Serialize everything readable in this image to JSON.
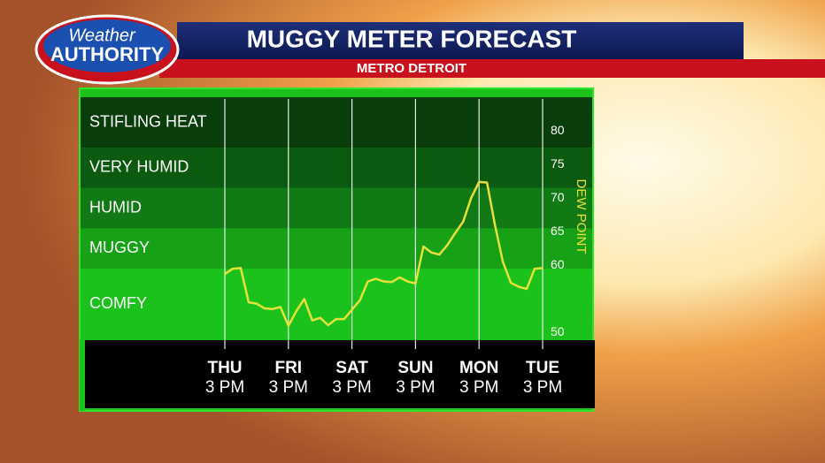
{
  "header": {
    "logo_top": "Weather",
    "logo_bottom": "AUTHORITY",
    "title": "MUGGY METER FORECAST",
    "subtitle": "METRO DETROIT"
  },
  "chart_data": {
    "type": "line",
    "y_label": "DEW POINT",
    "x": [
      0,
      3,
      6,
      9,
      12,
      15,
      18,
      21,
      24,
      27,
      30,
      33,
      36,
      39,
      42,
      45,
      48,
      51,
      54,
      57,
      60,
      63,
      66,
      69,
      72,
      75,
      78,
      81,
      84,
      87,
      90,
      93,
      96,
      99,
      102,
      105,
      108,
      111,
      114,
      117,
      120
    ],
    "series": [
      {
        "name": "Dew point",
        "color": "#e8e03a",
        "values": [
          58.7,
          59.5,
          59.6,
          54.5,
          54.3,
          53.6,
          53.5,
          53.8,
          51,
          53.2,
          55,
          51.8,
          52.2,
          51.1,
          52,
          52,
          53.4,
          54.8,
          57.6,
          58,
          57.6,
          57.5,
          58.2,
          57.6,
          57.3,
          62.8,
          61.9,
          61.6,
          63,
          64.8,
          66.5,
          70,
          72.4,
          72.3,
          66,
          60.5,
          57.4,
          56.8,
          56.5,
          59.5,
          59.6
        ]
      }
    ],
    "xlim": [
      0,
      120
    ],
    "xticks": [
      {
        "value": 0,
        "label": "THU"
      },
      {
        "value": 24,
        "label": "FRI"
      },
      {
        "value": 48,
        "label": "SAT"
      },
      {
        "value": 72,
        "label": "SUN"
      },
      {
        "value": 96,
        "label": "MON"
      },
      {
        "value": 120,
        "label": "TUE"
      }
    ],
    "xtick_times": [
      "3 PM",
      "3 PM",
      "3 PM",
      "3 PM",
      "3 PM",
      "3 PM"
    ],
    "ylim": [
      49,
      85
    ],
    "yticks": [
      50,
      60,
      65,
      70,
      75,
      80
    ],
    "bands": [
      {
        "label": "COMFY",
        "from": 49,
        "to": 59.5,
        "color": "#1cc21c"
      },
      {
        "label": "MUGGY",
        "from": 59.5,
        "to": 65.5,
        "color": "#17a117"
      },
      {
        "label": "HUMID",
        "from": 65.5,
        "to": 71.5,
        "color": "#117a14"
      },
      {
        "label": "VERY HUMID",
        "from": 71.5,
        "to": 77.5,
        "color": "#0c5a10"
      },
      {
        "label": "STIFLING HEAT",
        "from": 77.5,
        "to": 85,
        "color": "#093e0c"
      }
    ]
  }
}
